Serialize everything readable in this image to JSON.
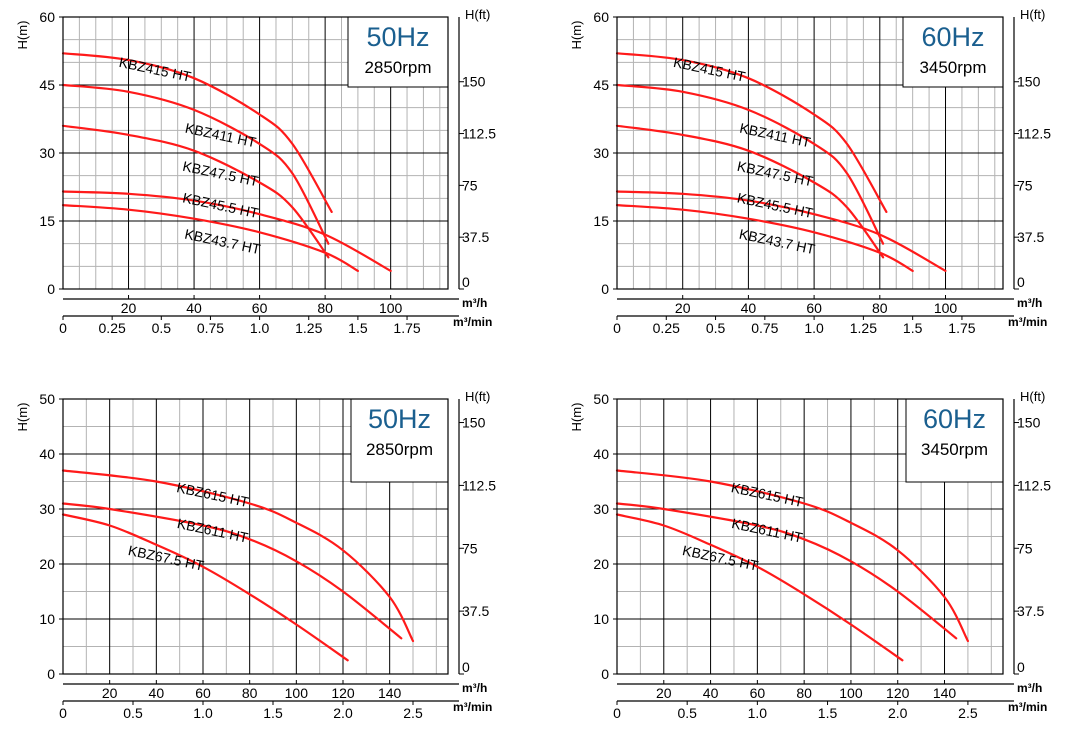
{
  "colors": {
    "curve": "#ff1a1a",
    "freq_text": "#1a5f8f",
    "grid_major": "#000000",
    "grid_minor": "#b3b3b3"
  },
  "chart_data": [
    {
      "type": "line",
      "frequency_label": "50Hz",
      "speed_label": "2850rpm",
      "ylabel_left": "H(m)",
      "ylabel_right": "H(ft)",
      "xlabel_top": "m³/h",
      "xlabel_bottom": "m³/min",
      "ylim": [
        0,
        60
      ],
      "xlim": [
        0,
        117.5
      ],
      "yticks_left": [
        "0",
        "15",
        "30",
        "45",
        "60"
      ],
      "yticks_right": [
        "0",
        "37.5",
        "75",
        "112.5",
        "150"
      ],
      "xticks_top": [
        "20",
        "40",
        "60",
        "80",
        "100"
      ],
      "xticks_bottom": [
        "0",
        "0.25",
        "0.5",
        "0.75",
        "1.0",
        "1.25",
        "1.5",
        "1.75"
      ],
      "grid": true,
      "series": [
        {
          "name": "KBZ415 HT",
          "x": [
            0,
            20,
            40,
            60,
            70,
            82
          ],
          "y": [
            52,
            50.5,
            46.5,
            38.5,
            32,
            17
          ]
        },
        {
          "name": "KBZ411 HT",
          "x": [
            0,
            20,
            40,
            60,
            70,
            81
          ],
          "y": [
            45,
            43.5,
            39.5,
            32,
            25.5,
            10
          ]
        },
        {
          "name": "KBZ47.5 HT",
          "x": [
            0,
            20,
            40,
            60,
            70,
            81
          ],
          "y": [
            36,
            34,
            30.5,
            23.5,
            18,
            7
          ]
        },
        {
          "name": "KBZ45.5 HT",
          "x": [
            0,
            20,
            40,
            60,
            80,
            100
          ],
          "y": [
            21.5,
            21,
            19.5,
            16.5,
            12,
            4
          ]
        },
        {
          "name": "KBZ43.7 HT",
          "x": [
            0,
            20,
            40,
            60,
            80,
            90
          ],
          "y": [
            18.5,
            17.5,
            15.5,
            12.5,
            8,
            4
          ]
        }
      ]
    },
    {
      "type": "line",
      "frequency_label": "60Hz",
      "speed_label": "3450rpm",
      "ylabel_left": "H(m)",
      "ylabel_right": "H(ft)",
      "xlabel_top": "m³/h",
      "xlabel_bottom": "m³/min",
      "ylim": [
        0,
        60
      ],
      "xlim": [
        0,
        117.5
      ],
      "yticks_left": [
        "0",
        "15",
        "30",
        "45",
        "60"
      ],
      "yticks_right": [
        "0",
        "37.5",
        "75",
        "112.5",
        "150"
      ],
      "xticks_top": [
        "20",
        "40",
        "60",
        "80",
        "100"
      ],
      "xticks_bottom": [
        "0",
        "0.25",
        "0.5",
        "0.75",
        "1.0",
        "1.25",
        "1.5",
        "1.75"
      ],
      "grid": true,
      "series": [
        {
          "name": "KBZ415 HT",
          "x": [
            0,
            20,
            40,
            60,
            70,
            82
          ],
          "y": [
            52,
            50.5,
            46.5,
            38.5,
            32,
            17
          ]
        },
        {
          "name": "KBZ411 HT",
          "x": [
            0,
            20,
            40,
            60,
            70,
            81
          ],
          "y": [
            45,
            43.5,
            39.5,
            32,
            25.5,
            10
          ]
        },
        {
          "name": "KBZ47.5 HT",
          "x": [
            0,
            20,
            40,
            60,
            70,
            81
          ],
          "y": [
            36,
            34,
            30.5,
            23.5,
            18,
            7
          ]
        },
        {
          "name": "KBZ45.5 HT",
          "x": [
            0,
            20,
            40,
            60,
            80,
            100
          ],
          "y": [
            21.5,
            21,
            19.5,
            16.5,
            12,
            4
          ]
        },
        {
          "name": "KBZ43.7 HT",
          "x": [
            0,
            20,
            40,
            60,
            80,
            90
          ],
          "y": [
            18.5,
            17.5,
            15.5,
            12.5,
            8,
            4
          ]
        }
      ]
    },
    {
      "type": "line",
      "frequency_label": "50Hz",
      "speed_label": "2850rpm",
      "ylabel_left": "H(m)",
      "ylabel_right": "H(ft)",
      "xlabel_top": "m³/h",
      "xlabel_bottom": "m³/min",
      "ylim": [
        0,
        50
      ],
      "xlim": [
        0,
        165
      ],
      "yticks_left": [
        "0",
        "10",
        "20",
        "30",
        "40",
        "50"
      ],
      "yticks_right": [
        "0",
        "37.5",
        "75",
        "112.5",
        "150"
      ],
      "xticks_top": [
        "20",
        "40",
        "60",
        "80",
        "100",
        "120",
        "140"
      ],
      "xticks_bottom": [
        "0",
        "0.5",
        "1.0",
        "1.5",
        "2.0",
        "2.5"
      ],
      "grid": true,
      "series": [
        {
          "name": "KBZ615 HT",
          "x": [
            0,
            40,
            80,
            100,
            120,
            140,
            150
          ],
          "y": [
            37,
            35,
            31,
            27.5,
            22.5,
            14,
            6
          ]
        },
        {
          "name": "KBZ611 HT",
          "x": [
            0,
            20,
            60,
            80,
            100,
            120,
            145
          ],
          "y": [
            31,
            30,
            27,
            24.5,
            20.5,
            15,
            6.5
          ]
        },
        {
          "name": "KBZ67.5 HT",
          "x": [
            0,
            20,
            40,
            60,
            80,
            100,
            122
          ],
          "y": [
            29,
            27,
            23.5,
            19.5,
            14.5,
            9,
            2.5
          ]
        }
      ]
    },
    {
      "type": "line",
      "frequency_label": "60Hz",
      "speed_label": "3450rpm",
      "ylabel_left": "H(m)",
      "ylabel_right": "H(ft)",
      "xlabel_top": "m³/h",
      "xlabel_bottom": "m³/min",
      "ylim": [
        0,
        50
      ],
      "xlim": [
        0,
        165
      ],
      "yticks_left": [
        "0",
        "10",
        "20",
        "30",
        "40",
        "50"
      ],
      "yticks_right": [
        "0",
        "37.5",
        "75",
        "112.5",
        "150"
      ],
      "xticks_top": [
        "20",
        "40",
        "60",
        "80",
        "100",
        "120",
        "140"
      ],
      "xticks_bottom": [
        "0",
        "0.5",
        "1.0",
        "1.5",
        "2.0",
        "2.5"
      ],
      "grid": true,
      "series": [
        {
          "name": "KBZ615 HT",
          "x": [
            0,
            40,
            80,
            100,
            120,
            140,
            150
          ],
          "y": [
            37,
            35,
            31,
            27.5,
            22.5,
            14,
            6
          ]
        },
        {
          "name": "KBZ611 HT",
          "x": [
            0,
            20,
            60,
            80,
            100,
            120,
            145
          ],
          "y": [
            31,
            30,
            27,
            24.5,
            20.5,
            15,
            6.5
          ]
        },
        {
          "name": "KBZ67.5 HT",
          "x": [
            0,
            20,
            40,
            60,
            80,
            100,
            122
          ],
          "y": [
            29,
            27,
            23.5,
            19.5,
            14.5,
            9,
            2.5
          ]
        }
      ]
    }
  ]
}
